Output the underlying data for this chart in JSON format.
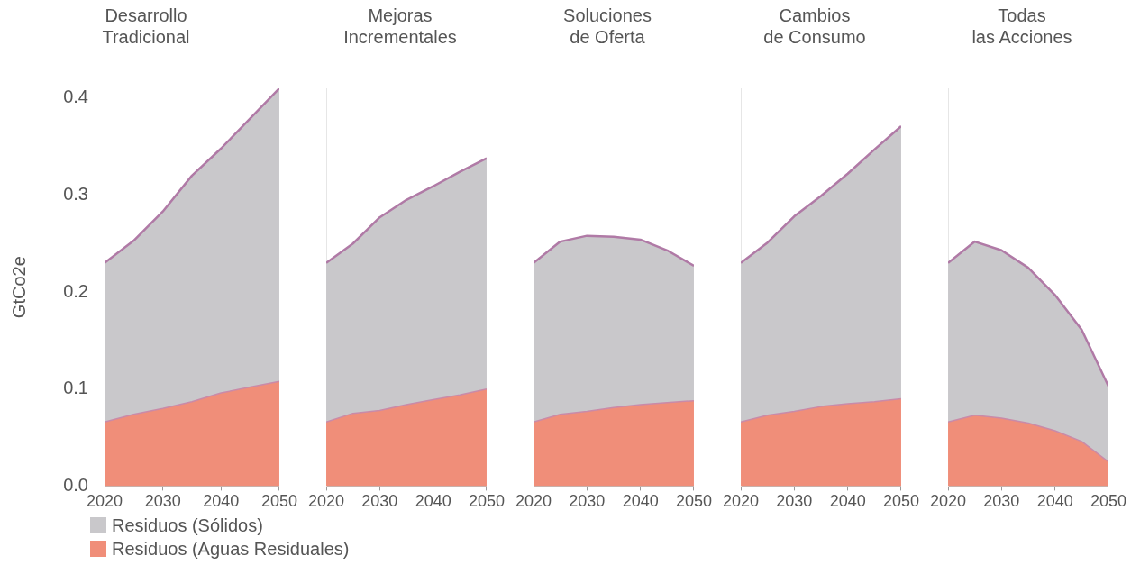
{
  "chart_data": [
    {
      "type": "area",
      "title": "Desarrollo\nTradicional",
      "ylabel": "GtCo2e",
      "stacked": true,
      "legend": "bottom",
      "x": [
        2020,
        2025,
        2030,
        2035,
        2040,
        2045,
        2050
      ],
      "xlim": [
        2020,
        2050
      ],
      "xticks": [
        2020,
        2030,
        2040,
        2050
      ],
      "ylim": [
        0,
        0.41
      ],
      "yticks": [
        {
          "value": 0,
          "label": "0.0"
        },
        0.1,
        0.2,
        0.3,
        0.4
      ],
      "series": [
        {
          "name": "Residuos (Aguas Residuales)",
          "color": "#f08e79",
          "values": [
            0.066,
            0.074,
            0.08,
            0.087,
            0.096,
            0.102,
            0.108
          ]
        },
        {
          "name": "Residuos (Sólidos)",
          "color": "#c9c8cb",
          "values": [
            0.164,
            0.179,
            0.203,
            0.233,
            0.252,
            0.277,
            0.302
          ]
        }
      ]
    },
    {
      "type": "area",
      "title": "Mejoras\nIncrementales",
      "stacked": true,
      "tick_labels": "x",
      "ylim": [
        0,
        0.41
      ],
      "x": [
        2020,
        2025,
        2030,
        2035,
        2040,
        2045,
        2050
      ],
      "xlim": [
        2020,
        2050
      ],
      "xticks": [
        2020,
        2030,
        2040,
        2050
      ],
      "series": [
        {
          "color": "#f08e79",
          "values": [
            0.066,
            0.075,
            0.078,
            0.084,
            0.089,
            0.094,
            0.1
          ]
        },
        {
          "color": "#c9c8cb",
          "values": [
            0.164,
            0.175,
            0.199,
            0.211,
            0.22,
            0.23,
            0.238
          ]
        }
      ]
    },
    {
      "type": "area",
      "title": "Soluciones\nde Oferta",
      "stacked": true,
      "tick_labels": "x",
      "ylim": [
        0,
        0.41
      ],
      "x": [
        2020,
        2025,
        2030,
        2035,
        2040,
        2045,
        2050
      ],
      "xlim": [
        2020,
        2050
      ],
      "xticks": [
        2020,
        2030,
        2040,
        2050
      ],
      "series": [
        {
          "color": "#f08e79",
          "values": [
            0.066,
            0.074,
            0.077,
            0.081,
            0.084,
            0.086,
            0.088
          ]
        },
        {
          "color": "#c9c8cb",
          "values": [
            0.164,
            0.178,
            0.181,
            0.176,
            0.17,
            0.157,
            0.139
          ]
        }
      ]
    },
    {
      "type": "area",
      "title": "Cambios\nde Consumo",
      "stacked": true,
      "tick_labels": "x",
      "ylim": [
        0,
        0.41
      ],
      "x": [
        2020,
        2025,
        2030,
        2035,
        2040,
        2045,
        2050
      ],
      "xlim": [
        2020,
        2050
      ],
      "xticks": [
        2020,
        2030,
        2040,
        2050
      ],
      "series": [
        {
          "color": "#f08e79",
          "values": [
            0.066,
            0.073,
            0.077,
            0.082,
            0.085,
            0.087,
            0.09
          ]
        },
        {
          "color": "#c9c8cb",
          "values": [
            0.164,
            0.178,
            0.201,
            0.217,
            0.237,
            0.26,
            0.281
          ]
        }
      ]
    },
    {
      "type": "area",
      "title": "Todas\nlas Acciones",
      "stacked": true,
      "tick_labels": "x",
      "ylim": [
        0,
        0.41
      ],
      "x": [
        2020,
        2025,
        2030,
        2035,
        2040,
        2045,
        2050
      ],
      "xlim": [
        2020,
        2050
      ],
      "xticks": [
        2020,
        2030,
        2040,
        2050
      ],
      "series": [
        {
          "color": "#f08e79",
          "values": [
            0.066,
            0.073,
            0.07,
            0.065,
            0.057,
            0.046,
            0.025
          ]
        },
        {
          "color": "#c9c8cb",
          "values": [
            0.164,
            0.179,
            0.173,
            0.16,
            0.14,
            0.115,
            0.078
          ]
        }
      ]
    }
  ]
}
